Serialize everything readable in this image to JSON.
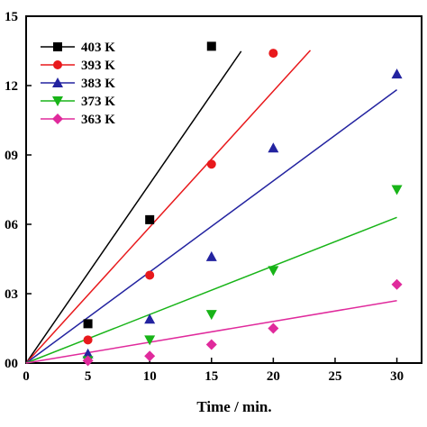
{
  "chart_data": {
    "type": "scatter",
    "xlabel": "Time / min.",
    "ylabel": "",
    "xlim": [
      0,
      32
    ],
    "ylim": [
      0,
      0.15
    ],
    "x_ticks": [
      0,
      5,
      10,
      15,
      20,
      25,
      30
    ],
    "x_tick_labels": [
      "0",
      "5",
      "10",
      "15",
      "20",
      "25",
      "30"
    ],
    "y_ticks": [
      0,
      0.03,
      0.06,
      0.09,
      0.12,
      0.15
    ],
    "y_tick_labels": [
      "00",
      "03",
      "06",
      "09",
      "12",
      "15"
    ],
    "grid": false,
    "legend_position": "top-left",
    "series": [
      {
        "name": "403 K",
        "color": "#000000",
        "marker": "square",
        "x": [
          5,
          10,
          15
        ],
        "y": [
          0.017,
          0.062,
          0.137
        ],
        "fit_slope": 0.00775,
        "fit_x_end": 17.4
      },
      {
        "name": "393 K",
        "color": "#e8191c",
        "marker": "circle",
        "x": [
          5,
          10,
          15,
          20
        ],
        "y": [
          0.01,
          0.038,
          0.086,
          0.134
        ],
        "fit_slope": 0.00588,
        "fit_x_end": 23
      },
      {
        "name": "383 K",
        "color": "#2323a0",
        "marker": "triangle-up",
        "x": [
          5,
          10,
          15,
          20,
          30
        ],
        "y": [
          0.004,
          0.019,
          0.046,
          0.093,
          0.125
        ],
        "fit_slope": 0.00394,
        "fit_x_end": 30
      },
      {
        "name": "373 K",
        "color": "#18b418",
        "marker": "triangle-down",
        "x": [
          5,
          10,
          15,
          20,
          30
        ],
        "y": [
          0.001,
          0.01,
          0.021,
          0.04,
          0.075
        ],
        "fit_slope": 0.0021,
        "fit_x_end": 30
      },
      {
        "name": "363 K",
        "color": "#e02a9c",
        "marker": "diamond",
        "x": [
          5,
          10,
          15,
          20,
          30
        ],
        "y": [
          0.001,
          0.003,
          0.008,
          0.015,
          0.034
        ],
        "fit_slope": 0.0009,
        "fit_x_end": 30
      }
    ]
  }
}
